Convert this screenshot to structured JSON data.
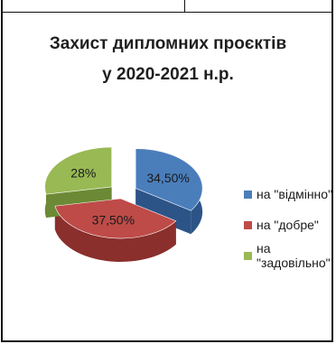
{
  "chart_data": {
    "type": "pie",
    "title_line1": "Захист дипломних проєктів",
    "title_line2": "у 2020-2021 н.р.",
    "categories": [
      "на \"відмінно\"",
      "на \"добре\"",
      "на \"задовільно\""
    ],
    "values": [
      34.5,
      37.5,
      28
    ],
    "data_labels": [
      "34,50%",
      "37,50%",
      "28%"
    ],
    "colors": [
      "#4a7ebb",
      "#be4b48",
      "#98b954"
    ],
    "side_colors": [
      "#2c5487",
      "#8a2f2c",
      "#6c8a35"
    ],
    "legend_position": "right"
  }
}
